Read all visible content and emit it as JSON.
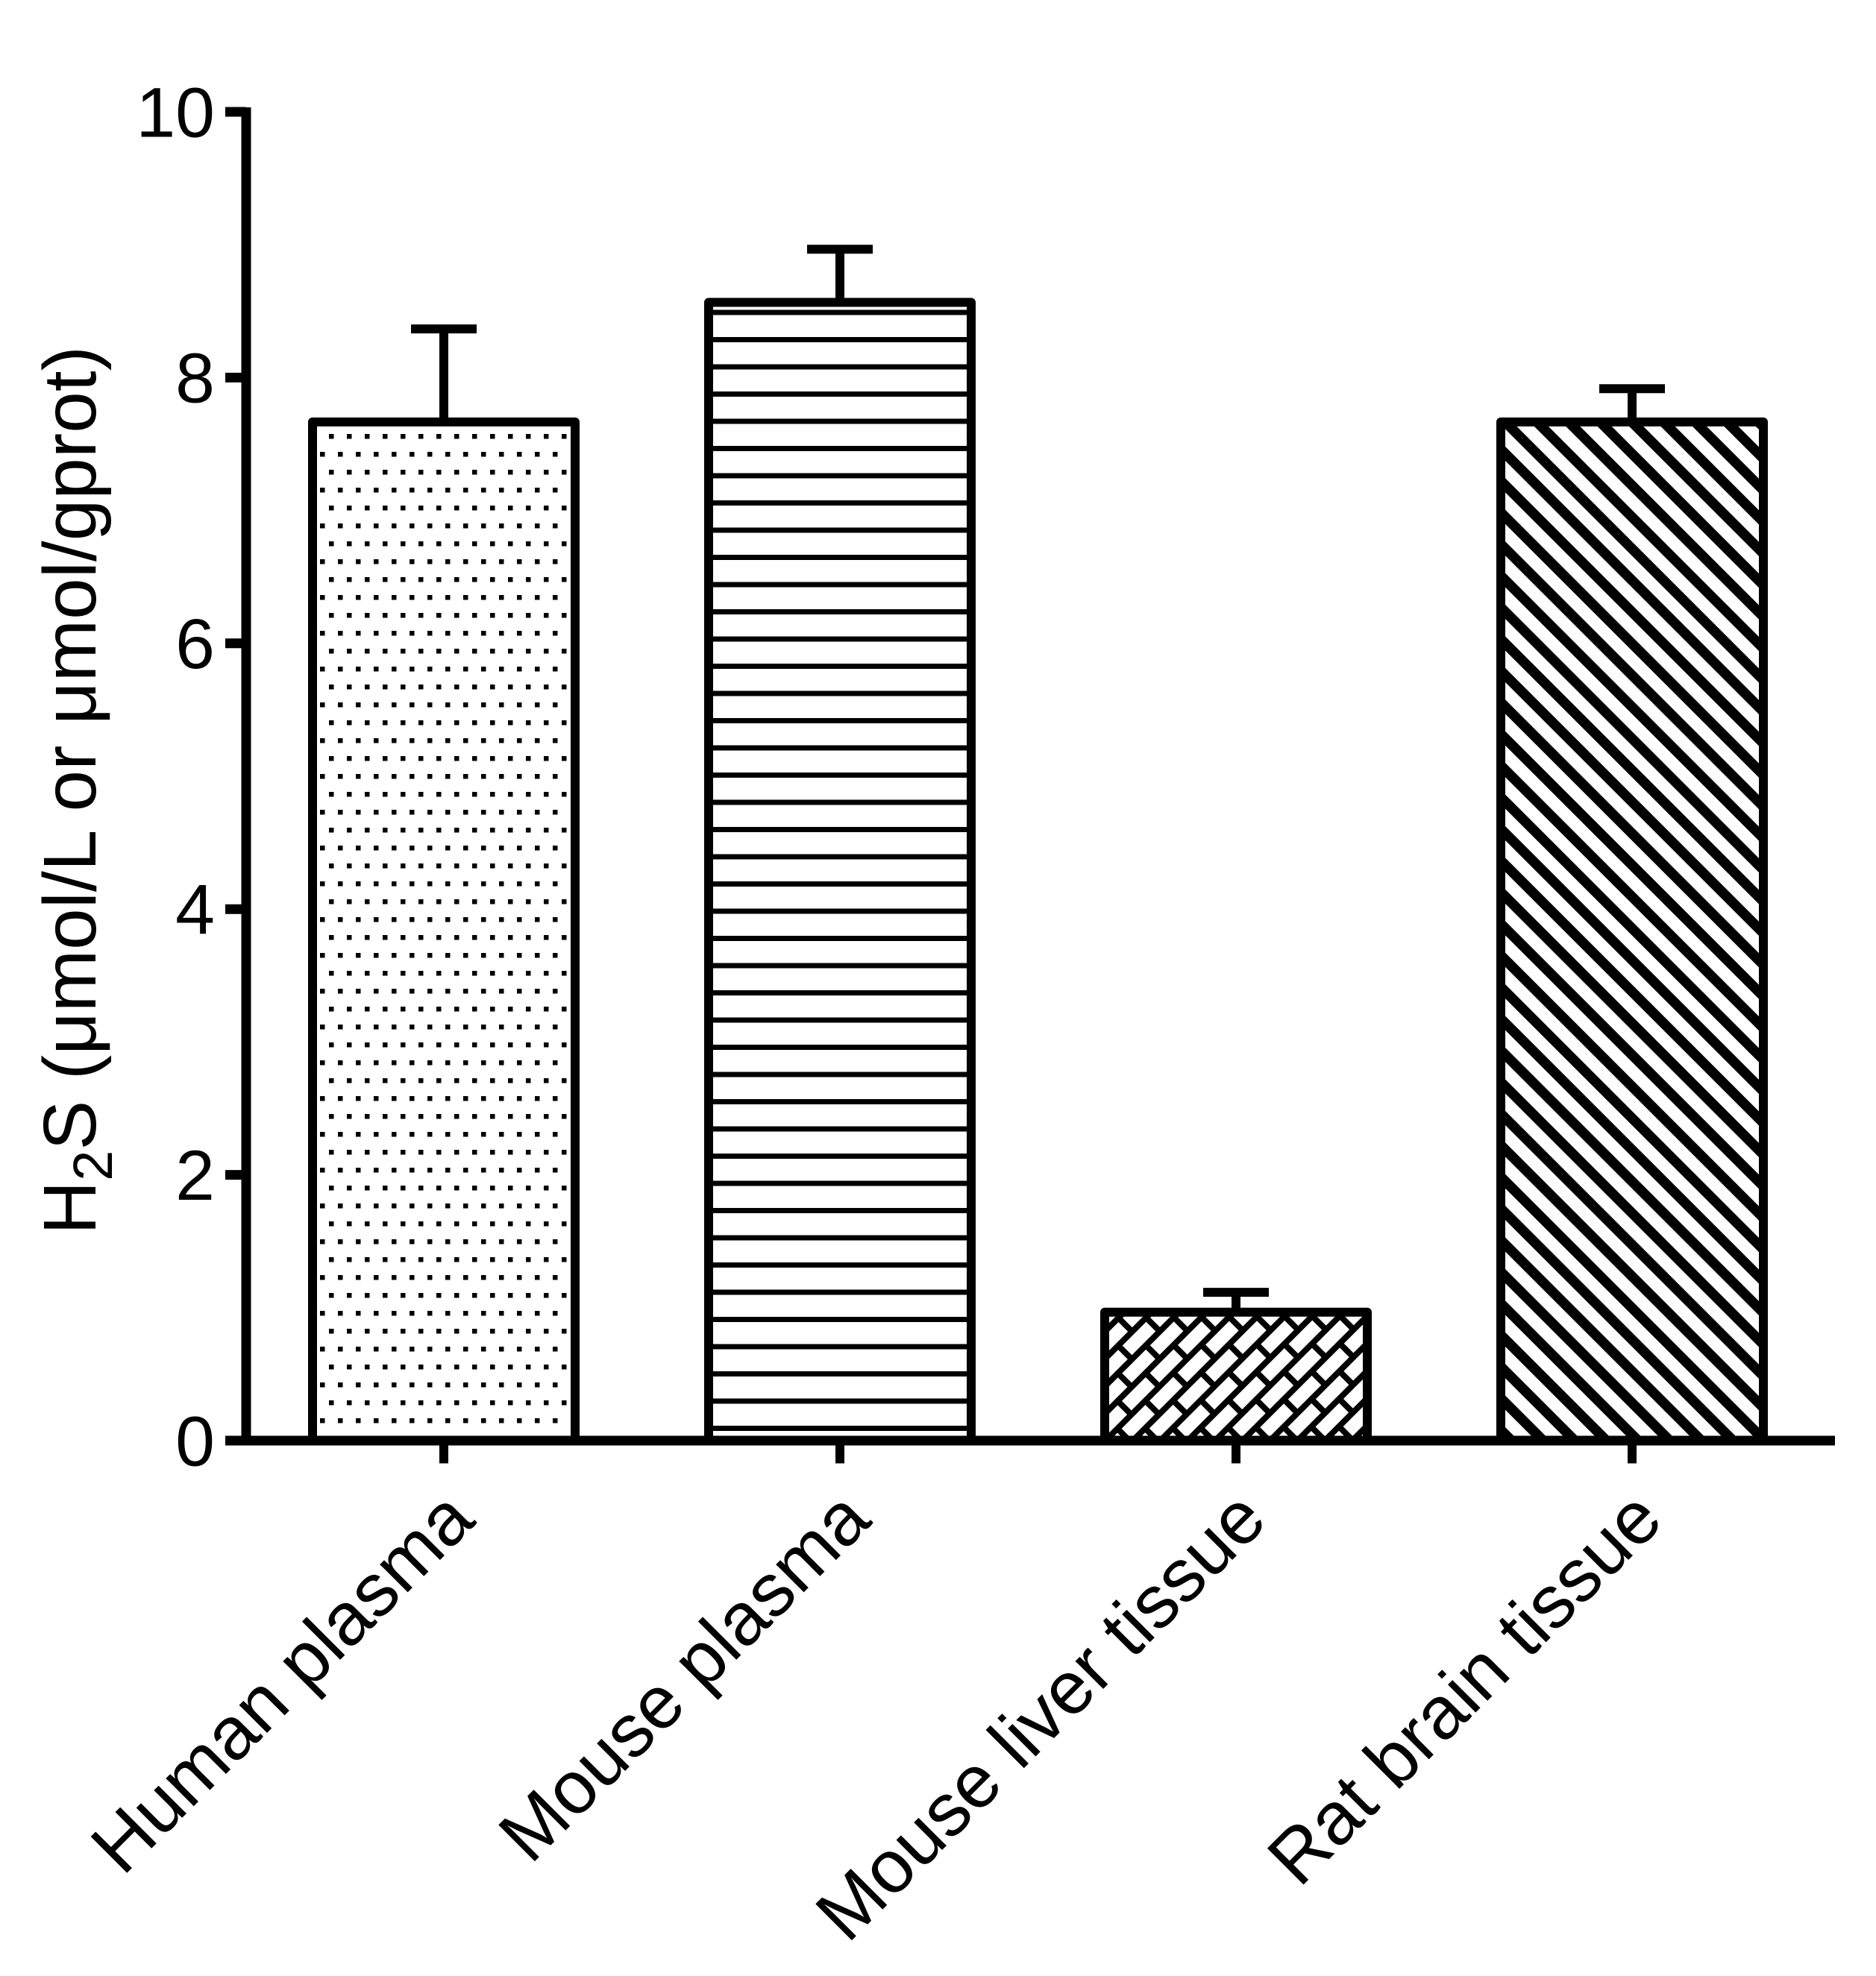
{
  "figure": {
    "background_color": "#ffffff",
    "ink_color": "#000000"
  },
  "chart_data": {
    "type": "bar",
    "title": "",
    "xlabel": "",
    "ylabel": "H2S (μmol/L or μmol/gprot)",
    "ylabel_parts": {
      "prefix": "H",
      "sub": "2",
      "suffix": "S (μmol/L or μmol/gprot)"
    },
    "categories": [
      "Human plasma",
      "Mouse plasma",
      "Mouse liver tissue",
      "Rat brain tissue"
    ],
    "values": [
      7.7,
      8.6,
      1.0,
      7.7
    ],
    "errors_plus": [
      0.7,
      0.4,
      0.15,
      0.25
    ],
    "bar_patterns": [
      "dots",
      "horizontal-lines",
      "diagonal-bricks",
      "diagonal-stripes"
    ],
    "bar_fill": "#ffffff",
    "bar_edge": "#000000",
    "ylim": [
      0,
      10
    ],
    "yticks": [
      0,
      2,
      4,
      6,
      8,
      10
    ],
    "grid": false,
    "legend": false,
    "error_bar_style": "upper-cap"
  }
}
